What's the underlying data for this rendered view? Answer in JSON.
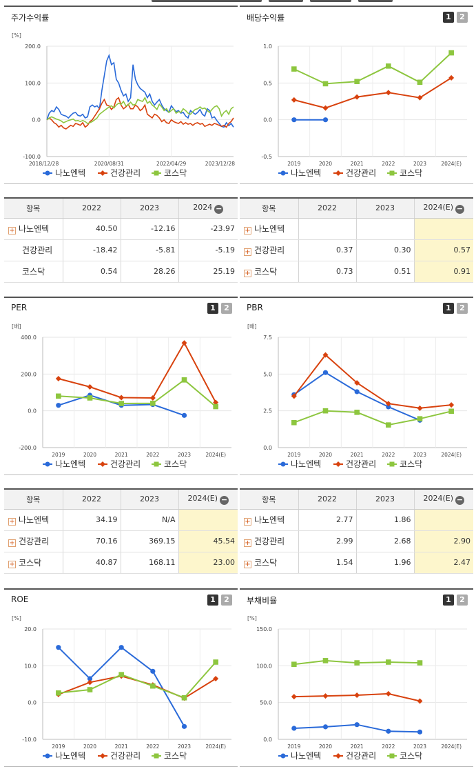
{
  "legend": [
    "나노엔텍",
    "건강관리",
    "코스닥"
  ],
  "colors": {
    "s0": "#2a6ad9",
    "s1": "#d8420e",
    "s2": "#8dc63f"
  },
  "buttons": {
    "one": "1",
    "two": "2",
    "minus": "−",
    "plus": "+"
  },
  "panels": [
    {
      "title": "주가수익률",
      "has_buttons": false,
      "chart_data": {
        "type": "line",
        "unit": "[%]",
        "yticks": [
          "200.0",
          "100.0",
          "0.0",
          "-100.0"
        ],
        "ylim": [
          -100,
          200
        ],
        "xticks": [
          "2018/12/28",
          "2020/08/31",
          "2022/04/29",
          "2023/12/28"
        ],
        "series": [
          {
            "name": "나노엔텍",
            "values": [
              0,
              18,
              25,
              22,
              35,
              28,
              15,
              12,
              10,
              5,
              12,
              18,
              20,
              12,
              10,
              15,
              5,
              8,
              35,
              40,
              35,
              38,
              30,
              80,
              120,
              160,
              175,
              150,
              155,
              110,
              100,
              80,
              65,
              70,
              50,
              60,
              150,
              110,
              95,
              85,
              80,
              75,
              60,
              70,
              50,
              40,
              48,
              55,
              40,
              30,
              25,
              20,
              38,
              30,
              22,
              25,
              18,
              20,
              10,
              5,
              25,
              20,
              15,
              20,
              28,
              15,
              10,
              30,
              25,
              5,
              8,
              -2,
              -10,
              -18,
              -20,
              -8,
              -16,
              -10,
              -20
            ]
          },
          {
            "name": "건강관리",
            "values": [
              0,
              5,
              0,
              -8,
              -12,
              -20,
              -15,
              -22,
              -25,
              -20,
              -15,
              -18,
              -10,
              -12,
              -15,
              -8,
              -20,
              -15,
              -5,
              0,
              10,
              20,
              30,
              45,
              55,
              40,
              38,
              28,
              35,
              55,
              60,
              40,
              30,
              35,
              42,
              30,
              30,
              40,
              35,
              25,
              30,
              40,
              15,
              10,
              5,
              15,
              12,
              5,
              -5,
              0,
              -8,
              -10,
              0,
              -5,
              -8,
              -10,
              -5,
              -12,
              -8,
              -12,
              -10,
              -15,
              -10,
              -8,
              -12,
              -10,
              -18,
              -15,
              -12,
              -15,
              -10,
              -12,
              -15,
              -18,
              -15,
              -20,
              -10,
              -5,
              5
            ]
          },
          {
            "name": "코스닥",
            "values": [
              0,
              5,
              8,
              5,
              2,
              0,
              -3,
              -8,
              -5,
              -2,
              0,
              2,
              -3,
              -2,
              -5,
              -2,
              -5,
              -10,
              -8,
              -5,
              0,
              5,
              15,
              20,
              25,
              30,
              35,
              38,
              32,
              40,
              45,
              42,
              50,
              38,
              40,
              48,
              40,
              42,
              55,
              52,
              50,
              60,
              45,
              50,
              40,
              35,
              28,
              42,
              35,
              25,
              30,
              20,
              25,
              30,
              18,
              22,
              20,
              30,
              25,
              18,
              15,
              22,
              28,
              30,
              35,
              30,
              32,
              25,
              20,
              28,
              35,
              38,
              30,
              10,
              20,
              25,
              15,
              30,
              35
            ]
          }
        ]
      }
    },
    {
      "title": "배당수익률",
      "has_buttons": true,
      "chart_data": {
        "type": "line",
        "yticks": [
          "1.0",
          "0.5",
          "0.0",
          "-0.5"
        ],
        "ylim": [
          -0.5,
          1.0
        ],
        "categories": [
          "2019",
          "2020",
          "2021",
          "2022",
          "2023",
          "2024(E)"
        ],
        "series": [
          {
            "name": "나노엔텍",
            "values": [
              0.0,
              0.0,
              null,
              null,
              null,
              null
            ]
          },
          {
            "name": "건강관리",
            "values": [
              0.27,
              0.16,
              0.31,
              0.37,
              0.3,
              0.57
            ]
          },
          {
            "name": "코스닥",
            "values": [
              0.69,
              0.49,
              0.52,
              0.73,
              0.51,
              0.91
            ]
          }
        ]
      }
    },
    {
      "title": "PER",
      "has_buttons": true,
      "chart_data": {
        "type": "line",
        "unit": "[배]",
        "yticks": [
          "400.0",
          "200.0",
          "0.0",
          "-200.0"
        ],
        "ylim": [
          -200,
          400
        ],
        "categories": [
          "2019",
          "2020",
          "2021",
          "2022",
          "2023",
          "2024(E)"
        ],
        "series": [
          {
            "name": "나노엔텍",
            "values": [
              30,
              85,
              30,
              34.19,
              -25,
              null
            ]
          },
          {
            "name": "건강관리",
            "values": [
              175,
              130,
              72,
              70.16,
              369.15,
              45.54
            ]
          },
          {
            "name": "코스닥",
            "values": [
              80,
              70,
              40,
              40.87,
              168.11,
              23.0
            ]
          }
        ]
      }
    },
    {
      "title": "PBR",
      "has_buttons": true,
      "chart_data": {
        "type": "line",
        "unit": "[배]",
        "yticks": [
          "7.5",
          "5.0",
          "2.5",
          "0.0"
        ],
        "ylim": [
          0,
          7.5
        ],
        "categories": [
          "2019",
          "2020",
          "2021",
          "2022",
          "2023",
          "2024(E)"
        ],
        "series": [
          {
            "name": "나노엔텍",
            "values": [
              3.6,
              5.1,
              3.8,
              2.77,
              1.86,
              null
            ]
          },
          {
            "name": "건강관리",
            "values": [
              3.5,
              6.3,
              4.4,
              2.99,
              2.68,
              2.9
            ]
          },
          {
            "name": "코스닥",
            "values": [
              1.7,
              2.5,
              2.4,
              1.54,
              1.96,
              2.47
            ]
          }
        ]
      }
    },
    {
      "title": "ROE",
      "has_buttons": true,
      "chart_data": {
        "type": "line",
        "unit": "[%]",
        "yticks": [
          "20.0",
          "10.0",
          "0.0",
          "-10.0"
        ],
        "ylim": [
          -10,
          20
        ],
        "categories": [
          "2019",
          "2020",
          "2021",
          "2022",
          "2023",
          "2024(E)"
        ],
        "series": [
          {
            "name": "나노엔텍",
            "values": [
              15.0,
              6.5,
              15.0,
              8.5,
              -6.5,
              null
            ]
          },
          {
            "name": "건강관리",
            "values": [
              2.2,
              5.5,
              7.2,
              4.8,
              1.2,
              6.5
            ]
          },
          {
            "name": "코스닥",
            "values": [
              2.6,
              3.5,
              7.6,
              4.5,
              1.3,
              11.0
            ]
          }
        ]
      }
    },
    {
      "title": "부채비율",
      "has_buttons": true,
      "chart_data": {
        "type": "line",
        "unit": "[%]",
        "yticks": [
          "150.0",
          "100.0",
          "50.0",
          "0.0"
        ],
        "ylim": [
          0,
          150
        ],
        "categories": [
          "2019",
          "2020",
          "2021",
          "2022",
          "2023",
          "2024(E)"
        ],
        "series": [
          {
            "name": "나노엔텍",
            "values": [
              15,
              17,
              20,
              11,
              10,
              null
            ]
          },
          {
            "name": "건강관리",
            "values": [
              58,
              59,
              60,
              62,
              52,
              null
            ]
          },
          {
            "name": "코스닥",
            "values": [
              102,
              107,
              104,
              105,
              104,
              null
            ]
          }
        ]
      }
    }
  ],
  "tables": [
    {
      "headers": [
        "항목",
        "2022",
        "2023",
        "2024"
      ],
      "highlight_last": false,
      "rows": [
        {
          "name": "나노엔텍",
          "plus": true,
          "values": [
            "40.50",
            "-12.16",
            "-23.97"
          ]
        },
        {
          "name": "건강관리",
          "plus": false,
          "values": [
            "-18.42",
            "-5.81",
            "-5.19"
          ]
        },
        {
          "name": "코스닥",
          "plus": false,
          "values": [
            "0.54",
            "28.26",
            "25.19"
          ]
        }
      ]
    },
    {
      "headers": [
        "항목",
        "2022",
        "2023",
        "2024(E)"
      ],
      "highlight_last": true,
      "rows": [
        {
          "name": "나노엔텍",
          "plus": true,
          "values": [
            "",
            "",
            ""
          ]
        },
        {
          "name": "건강관리",
          "plus": true,
          "values": [
            "0.37",
            "0.30",
            "0.57"
          ]
        },
        {
          "name": "코스닥",
          "plus": true,
          "values": [
            "0.73",
            "0.51",
            "0.91"
          ]
        }
      ]
    },
    {
      "headers": [
        "항목",
        "2022",
        "2023",
        "2024(E)"
      ],
      "highlight_last": true,
      "rows": [
        {
          "name": "나노엔텍",
          "plus": true,
          "values": [
            "34.19",
            "N/A",
            ""
          ]
        },
        {
          "name": "건강관리",
          "plus": true,
          "values": [
            "70.16",
            "369.15",
            "45.54"
          ]
        },
        {
          "name": "코스닥",
          "plus": true,
          "values": [
            "40.87",
            "168.11",
            "23.00"
          ]
        }
      ]
    },
    {
      "headers": [
        "항목",
        "2022",
        "2023",
        "2024(E)"
      ],
      "highlight_last": true,
      "rows": [
        {
          "name": "나노엔텍",
          "plus": true,
          "values": [
            "2.77",
            "1.86",
            ""
          ]
        },
        {
          "name": "건강관리",
          "plus": true,
          "values": [
            "2.99",
            "2.68",
            "2.90"
          ]
        },
        {
          "name": "코스닥",
          "plus": true,
          "values": [
            "1.54",
            "1.96",
            "2.47"
          ]
        }
      ]
    }
  ]
}
